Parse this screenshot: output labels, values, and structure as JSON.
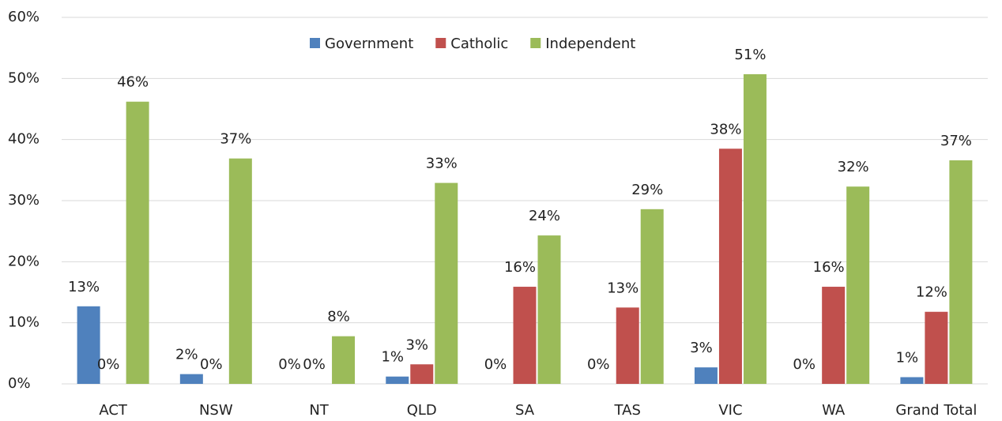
{
  "chart_data": {
    "type": "bar",
    "categories": [
      "ACT",
      "NSW",
      "NT",
      "QLD",
      "SA",
      "TAS",
      "VIC",
      "WA",
      "Grand Total"
    ],
    "series": [
      {
        "name": "Government",
        "color": "#4f81bd",
        "values": [
          12.7,
          1.6,
          0,
          1.2,
          0,
          0,
          2.7,
          0,
          1.1
        ],
        "value_labels": [
          "13%",
          "2%",
          "0%",
          "1%",
          "0%",
          "0%",
          "3%",
          "0%",
          "1%"
        ]
      },
      {
        "name": "Catholic",
        "color": "#c0504d",
        "values": [
          0,
          0,
          0,
          3.2,
          15.9,
          12.5,
          38.5,
          15.9,
          11.8
        ],
        "value_labels": [
          "0%",
          "0%",
          "0%",
          "3%",
          "16%",
          "13%",
          "38%",
          "16%",
          "12%"
        ]
      },
      {
        "name": "Independent",
        "color": "#9bbb59",
        "values": [
          46.2,
          36.9,
          7.8,
          32.9,
          24.3,
          28.6,
          50.7,
          32.3,
          36.6
        ],
        "value_labels": [
          "46%",
          "37%",
          "8%",
          "33%",
          "24%",
          "29%",
          "51%",
          "32%",
          "37%"
        ]
      }
    ],
    "ylim": [
      0,
      60
    ],
    "yticks": [
      {
        "value": 0,
        "label": "0%"
      },
      {
        "value": 10,
        "label": "10%"
      },
      {
        "value": 20,
        "label": "20%"
      },
      {
        "value": 30,
        "label": "30%"
      },
      {
        "value": 40,
        "label": "40%"
      },
      {
        "value": 50,
        "label": "50%"
      },
      {
        "value": 60,
        "label": "60%"
      }
    ],
    "grid": true,
    "legend": "top"
  }
}
